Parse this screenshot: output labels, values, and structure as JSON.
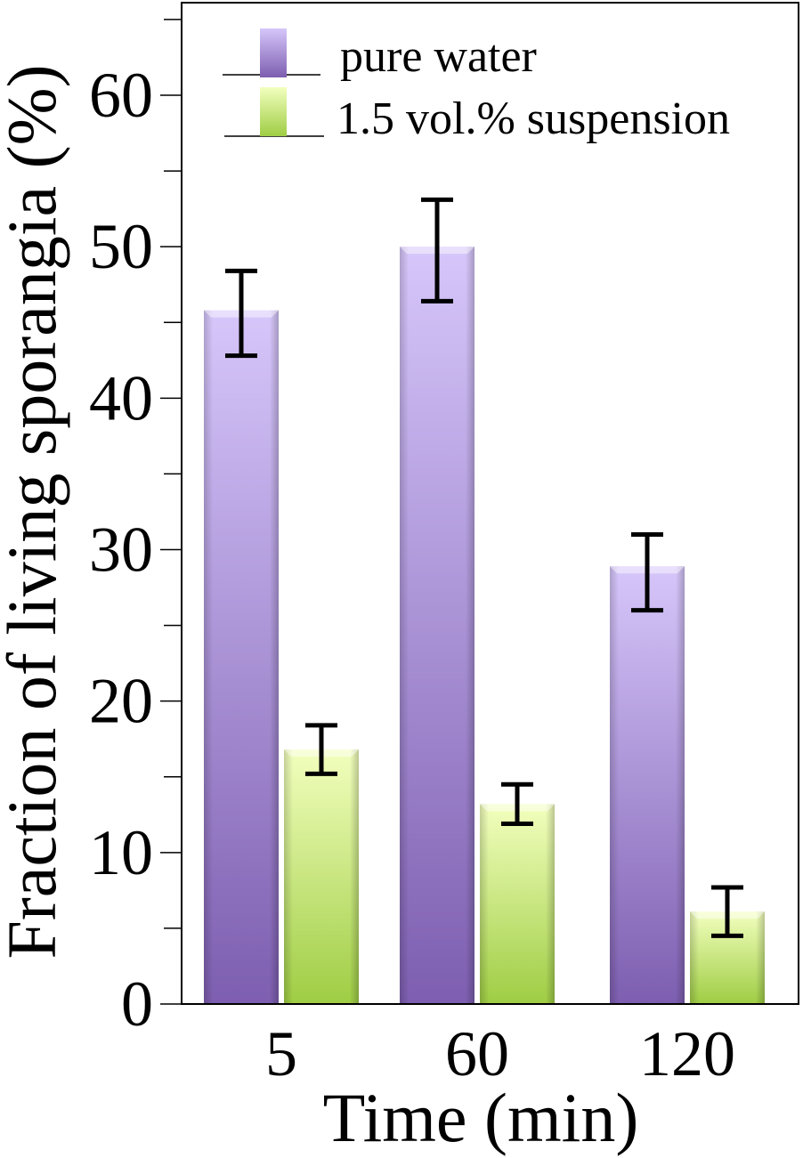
{
  "chart_data": {
    "type": "bar",
    "xlabel": "Time (min)",
    "ylabel": "Fraction of living sporangia (%)",
    "categories": [
      "5",
      "60",
      "120"
    ],
    "ylim": [
      0,
      66
    ],
    "yticks": [
      0,
      10,
      20,
      30,
      40,
      50,
      60
    ],
    "minor_tick_step": 5,
    "legend_position": "top-left",
    "grid": false,
    "series": [
      {
        "name": "pure water",
        "values": [
          45.8,
          50.0,
          28.9
        ],
        "error_low": [
          42.8,
          46.4,
          26.0
        ],
        "error_high": [
          48.4,
          53.1,
          31.0
        ],
        "color_top": "#d4c2f8",
        "color_bottom": "#7e5fb2"
      },
      {
        "name": "1.5 vol.% suspension",
        "values": [
          16.8,
          13.2,
          6.1
        ],
        "error_low": [
          15.2,
          11.9,
          4.5
        ],
        "error_high": [
          18.4,
          14.5,
          7.7
        ],
        "color_top": "#f0ffb8",
        "color_bottom": "#a2cf48"
      }
    ]
  }
}
